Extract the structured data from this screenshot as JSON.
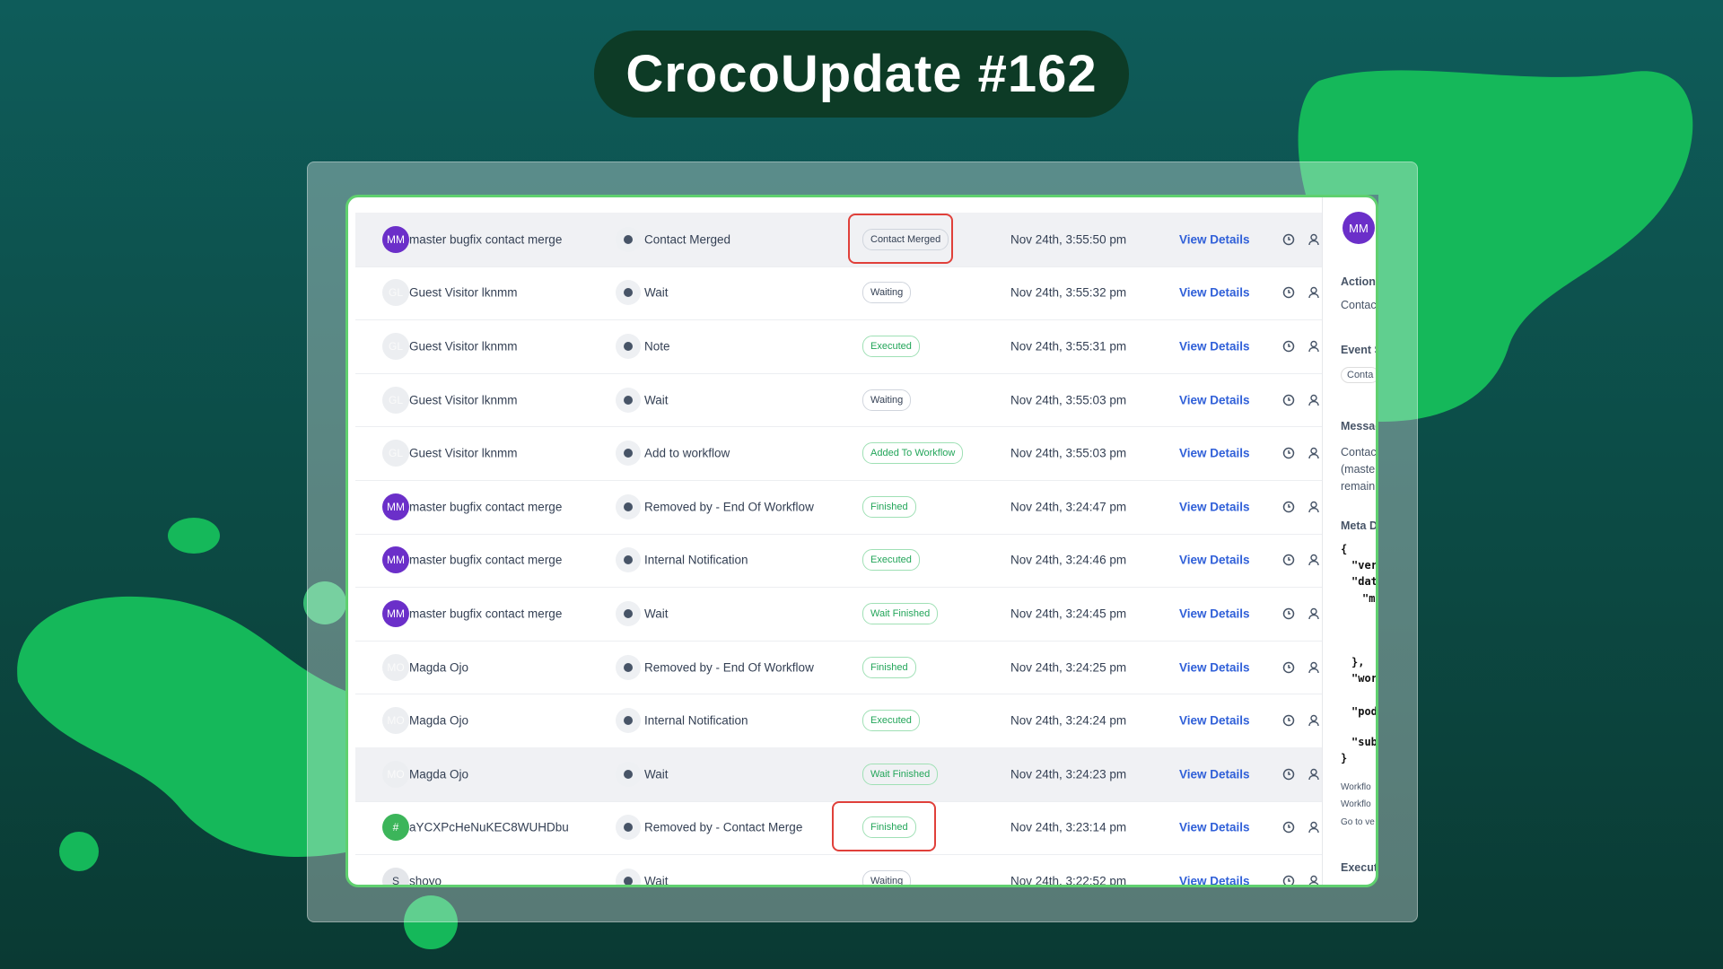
{
  "header": {
    "title": "CrocoUpdate #162"
  },
  "table": {
    "link_text": "View Details",
    "rows": [
      {
        "initials": "MM",
        "avatar_color": "#6b2fc9",
        "name": "master bugfix contact merge",
        "action": "Contact Merged",
        "status": "Contact Merged",
        "status_color": "#344054",
        "time": "Nov 24th, 3:55:50 pm"
      },
      {
        "initials": "GL",
        "avatar_color": "#eceef1",
        "name": "Guest Visitor lknmm",
        "action": "Wait",
        "status": "Waiting",
        "status_color": "#344054",
        "time": "Nov 24th, 3:55:32 pm"
      },
      {
        "initials": "GL",
        "avatar_color": "#eceef1",
        "name": "Guest Visitor lknmm",
        "action": "Note",
        "status": "Executed",
        "status_color": "#22a559",
        "time": "Nov 24th, 3:55:31 pm"
      },
      {
        "initials": "GL",
        "avatar_color": "#eceef1",
        "name": "Guest Visitor lknmm",
        "action": "Wait",
        "status": "Waiting",
        "status_color": "#344054",
        "time": "Nov 24th, 3:55:03 pm"
      },
      {
        "initials": "GL",
        "avatar_color": "#eceef1",
        "name": "Guest Visitor lknmm",
        "action": "Add to workflow",
        "status": "Added To Workflow",
        "status_color": "#22a559",
        "time": "Nov 24th, 3:55:03 pm"
      },
      {
        "initials": "MM",
        "avatar_color": "#6b2fc9",
        "name": "master bugfix contact merge",
        "action": "Removed by - End Of Workflow",
        "status": "Finished",
        "status_color": "#22a559",
        "time": "Nov 24th, 3:24:47 pm"
      },
      {
        "initials": "MM",
        "avatar_color": "#6b2fc9",
        "name": "master bugfix contact merge",
        "action": "Internal Notification",
        "status": "Executed",
        "status_color": "#22a559",
        "time": "Nov 24th, 3:24:46 pm"
      },
      {
        "initials": "MM",
        "avatar_color": "#6b2fc9",
        "name": "master bugfix contact merge",
        "action": "Wait",
        "status": "Wait Finished",
        "status_color": "#22a559",
        "time": "Nov 24th, 3:24:45 pm"
      },
      {
        "initials": "MO",
        "avatar_color": "#eceef1",
        "name": "Magda Ojo",
        "action": "Removed by - End Of Workflow",
        "status": "Finished",
        "status_color": "#22a559",
        "time": "Nov 24th, 3:24:25 pm"
      },
      {
        "initials": "MO",
        "avatar_color": "#eceef1",
        "name": "Magda Ojo",
        "action": "Internal Notification",
        "status": "Executed",
        "status_color": "#22a559",
        "time": "Nov 24th, 3:24:24 pm"
      },
      {
        "initials": "MO",
        "avatar_color": "#eceef1",
        "name": "Magda Ojo",
        "action": "Wait",
        "status": "Wait Finished",
        "status_color": "#22a559",
        "time": "Nov 24th, 3:24:23 pm"
      },
      {
        "initials": "#",
        "avatar_color": "#3cb55a",
        "name": "aYCXPcHeNuKEC8WUHDbu",
        "action": "Removed by - Contact Merge",
        "status": "Finished",
        "status_color": "#22a559",
        "time": "Nov 24th, 3:23:14 pm"
      },
      {
        "initials": "S",
        "avatar_color": "#e4e6ea",
        "name": "shoyo",
        "action": "Wait",
        "status": "Waiting",
        "status_color": "#344054",
        "time": "Nov 24th, 3:22:52 pm"
      }
    ]
  },
  "side_panel": {
    "avatar": "MM",
    "action_label": "Action",
    "action_value": "Contac",
    "event_label": "Event S",
    "event_value": "Conta",
    "message_label": "Messag",
    "message_lines": [
      "Contac",
      "(maste",
      "remaini"
    ],
    "meta_label": "Meta D",
    "code_lines": [
      "{",
      "\"ver",
      "\"dat",
      "\"m",
      "},",
      "\"wor",
      "\"pod",
      "\"sub",
      "}"
    ],
    "footer_lines": [
      "Workflo",
      "Workflo",
      "Go to ve"
    ],
    "execution_label": "Execut"
  }
}
